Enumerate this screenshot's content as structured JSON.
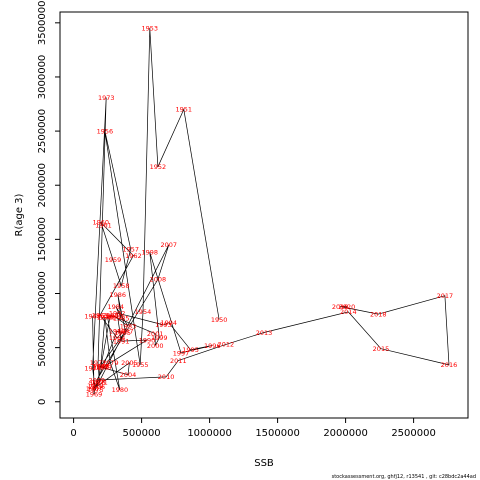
{
  "chart_data": {
    "type": "line",
    "xlabel": "SSB",
    "ylabel": "R(age 3)",
    "xlim": [
      -100000,
      2900000
    ],
    "ylim": [
      -150000,
      3600000
    ],
    "xticks": [
      0,
      500000,
      1000000,
      1500000,
      2000000,
      2500000
    ],
    "yticks": [
      0,
      500000,
      1000000,
      1500000,
      2000000,
      2500000,
      3000000,
      3500000
    ],
    "xtick_labels": [
      "0",
      "500000",
      "1000000",
      "1500000",
      "2000000",
      "2500000"
    ],
    "ytick_labels": [
      "0",
      "500000",
      "1000000",
      "1500000",
      "2000000",
      "2500000",
      "3000000",
      "3500000"
    ],
    "line_color": "#000000",
    "label_color": "#ff0000",
    "footer": "stockassessment.org, ghfj12, r13541 , git: c28bdc2a44ad",
    "points": [
      {
        "label": "1950",
        "x": 1070000,
        "y": 760000
      },
      {
        "label": "1951",
        "x": 810000,
        "y": 2700000
      },
      {
        "label": "1952",
        "x": 620000,
        "y": 2170000
      },
      {
        "label": "1953",
        "x": 560000,
        "y": 3450000
      },
      {
        "label": "1954",
        "x": 510000,
        "y": 830000
      },
      {
        "label": "1955",
        "x": 490000,
        "y": 340000
      },
      {
        "label": "1956",
        "x": 230000,
        "y": 2500000
      },
      {
        "label": "1957",
        "x": 420000,
        "y": 1410000
      },
      {
        "label": "1958",
        "x": 350000,
        "y": 1070000
      },
      {
        "label": "1959",
        "x": 290000,
        "y": 1310000
      },
      {
        "label": "1960",
        "x": 200000,
        "y": 1660000
      },
      {
        "label": "1961",
        "x": 220000,
        "y": 1630000
      },
      {
        "label": "1962",
        "x": 440000,
        "y": 1350000
      },
      {
        "label": "1963",
        "x": 195000,
        "y": 800000
      },
      {
        "label": "1964",
        "x": 320000,
        "y": 590000
      },
      {
        "label": "1965",
        "x": 360000,
        "y": 640000
      },
      {
        "label": "1966",
        "x": 320000,
        "y": 650000
      },
      {
        "label": "1967",
        "x": 150000,
        "y": 120000
      },
      {
        "label": "1968",
        "x": 140000,
        "y": 790000
      },
      {
        "label": "1969",
        "x": 150000,
        "y": 70000
      },
      {
        "label": "1970",
        "x": 160000,
        "y": 150000
      },
      {
        "label": "1971",
        "x": 190000,
        "y": 180000
      },
      {
        "label": "1972",
        "x": 180000,
        "y": 360000
      },
      {
        "label": "1973",
        "x": 240000,
        "y": 2810000
      },
      {
        "label": "1974",
        "x": 140000,
        "y": 310000
      },
      {
        "label": "1975",
        "x": 160000,
        "y": 110000
      },
      {
        "label": "1976",
        "x": 175000,
        "y": 175000
      },
      {
        "label": "1977",
        "x": 200000,
        "y": 330000
      },
      {
        "label": "1978",
        "x": 230000,
        "y": 780000
      },
      {
        "label": "1979",
        "x": 270000,
        "y": 360000
      },
      {
        "label": "1980",
        "x": 340000,
        "y": 110000
      },
      {
        "label": "1981",
        "x": 250000,
        "y": 780000
      },
      {
        "label": "1982",
        "x": 300000,
        "y": 790000
      },
      {
        "label": "1983",
        "x": 400000,
        "y": 700000
      },
      {
        "label": "1984",
        "x": 310000,
        "y": 880000
      },
      {
        "label": "1985",
        "x": 350000,
        "y": 770000
      },
      {
        "label": "1986",
        "x": 325000,
        "y": 990000
      },
      {
        "label": "1987",
        "x": 380000,
        "y": 650000
      },
      {
        "label": "1988",
        "x": 200000,
        "y": 330000
      },
      {
        "label": "1989",
        "x": 220000,
        "y": 320000
      },
      {
        "label": "1990",
        "x": 540000,
        "y": 570000
      },
      {
        "label": "1991",
        "x": 350000,
        "y": 560000
      },
      {
        "label": "1992",
        "x": 320000,
        "y": 820000
      },
      {
        "label": "1993",
        "x": 660000,
        "y": 710000
      },
      {
        "label": "1994",
        "x": 700000,
        "y": 730000
      },
      {
        "label": "1995",
        "x": 860000,
        "y": 480000
      },
      {
        "label": "1996",
        "x": 1020000,
        "y": 520000
      },
      {
        "label": "1997",
        "x": 790000,
        "y": 450000
      },
      {
        "label": "1998",
        "x": 560000,
        "y": 1380000
      },
      {
        "label": "1999",
        "x": 630000,
        "y": 590000
      },
      {
        "label": "2000",
        "x": 600000,
        "y": 520000
      },
      {
        "label": "2001",
        "x": 600000,
        "y": 630000
      },
      {
        "label": "2002",
        "x": 270000,
        "y": 800000
      },
      {
        "label": "2003",
        "x": 200000,
        "y": 320000
      },
      {
        "label": "2004",
        "x": 400000,
        "y": 250000
      },
      {
        "label": "2005",
        "x": 410000,
        "y": 360000
      },
      {
        "label": "2006",
        "x": 170000,
        "y": 140000
      },
      {
        "label": "2007",
        "x": 700000,
        "y": 1450000
      },
      {
        "label": "2008",
        "x": 620000,
        "y": 1130000
      },
      {
        "label": "2009",
        "x": 170000,
        "y": 200000
      },
      {
        "label": "2010",
        "x": 680000,
        "y": 230000
      },
      {
        "label": "2011",
        "x": 770000,
        "y": 380000
      },
      {
        "label": "2012",
        "x": 1120000,
        "y": 530000
      },
      {
        "label": "2013",
        "x": 1400000,
        "y": 640000
      },
      {
        "label": "2014",
        "x": 2020000,
        "y": 830000
      },
      {
        "label": "2015",
        "x": 2260000,
        "y": 490000
      },
      {
        "label": "2016",
        "x": 2760000,
        "y": 340000
      },
      {
        "label": "2017",
        "x": 2730000,
        "y": 980000
      },
      {
        "label": "2018",
        "x": 2240000,
        "y": 810000
      },
      {
        "label": "2019",
        "x": 1960000,
        "y": 880000
      },
      {
        "label": "2020",
        "x": 2010000,
        "y": 880000
      }
    ]
  }
}
